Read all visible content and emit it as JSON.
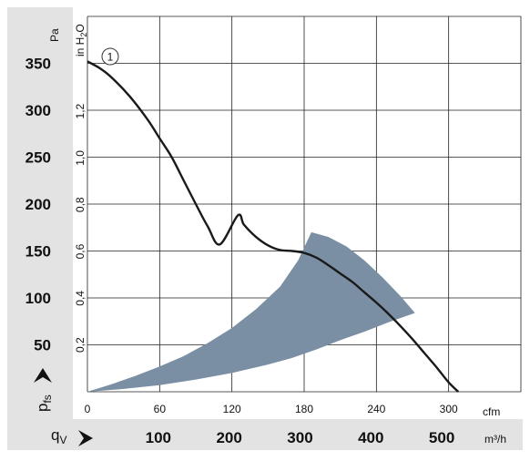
{
  "chart_data": {
    "type": "line",
    "title": "",
    "pressure_axis": {
      "unit_pa": "Pa",
      "ticks_pa": [
        50,
        100,
        150,
        200,
        250,
        300,
        350
      ],
      "unit_inh2o_main": "in H",
      "unit_inh2o_sub": "2",
      "unit_inh2o_tail": "O",
      "ticks_inh2o": [
        "0,2",
        "0,4",
        "0,6",
        "0,8",
        "1,0",
        "1,2"
      ],
      "ticks_inh2o_values": [
        0.2,
        0.4,
        0.6,
        0.8,
        1.0,
        1.2
      ],
      "label_main": "p",
      "label_sub": "fs",
      "ylim": [
        0,
        400
      ]
    },
    "flow_axis": {
      "unit_cfm": "cfm",
      "ticks_cfm": [
        0,
        60,
        120,
        180,
        240,
        300
      ],
      "unit_m3h": "m³/h",
      "ticks_m3h": [
        100,
        200,
        300,
        400,
        500
      ],
      "label_main": "q",
      "label_sub": "V",
      "xlim_cfm": [
        0,
        360
      ]
    },
    "curve_label": "1",
    "series": [
      {
        "points_cfm_pa": [
          [
            0,
            352
          ],
          [
            10,
            345
          ],
          [
            20,
            335
          ],
          [
            35,
            315
          ],
          [
            50,
            290
          ],
          [
            60,
            270
          ],
          [
            70,
            250
          ],
          [
            80,
            225
          ],
          [
            90,
            200
          ],
          [
            100,
            176
          ],
          [
            110,
            157
          ],
          [
            120,
            196
          ],
          [
            125,
            188
          ],
          [
            130,
            178
          ],
          [
            140,
            165
          ],
          [
            150,
            156
          ],
          [
            160,
            151
          ],
          [
            170,
            150
          ],
          [
            180,
            148
          ],
          [
            190,
            143
          ],
          [
            200,
            135
          ],
          [
            210,
            126
          ],
          [
            220,
            117
          ],
          [
            230,
            106
          ],
          [
            240,
            95
          ],
          [
            250,
            83
          ],
          [
            260,
            70
          ],
          [
            270,
            56
          ],
          [
            280,
            41
          ],
          [
            290,
            26
          ],
          [
            300,
            10
          ],
          [
            308,
            0
          ]
        ],
        "color": "#1a1a1a"
      }
    ],
    "operating_range": {
      "color": "#7a8fa3",
      "upper_boundary": [
        [
          0,
          0
        ],
        [
          20,
          8
        ],
        [
          40,
          17
        ],
        [
          60,
          27
        ],
        [
          80,
          38
        ],
        [
          100,
          52
        ],
        [
          120,
          68
        ],
        [
          140,
          88
        ],
        [
          160,
          112
        ],
        [
          175,
          140
        ],
        [
          186,
          170
        ]
      ],
      "top": [
        [
          186,
          170
        ],
        [
          200,
          165
        ],
        [
          215,
          155
        ],
        [
          230,
          140
        ],
        [
          245,
          122
        ],
        [
          260,
          102
        ],
        [
          272,
          84
        ]
      ],
      "lower_boundary": [
        [
          272,
          84
        ],
        [
          250,
          74
        ],
        [
          230,
          64
        ],
        [
          210,
          55
        ],
        [
          190,
          45
        ],
        [
          170,
          36
        ],
        [
          150,
          29
        ],
        [
          120,
          20
        ],
        [
          90,
          13
        ],
        [
          60,
          7
        ],
        [
          30,
          3
        ],
        [
          0,
          0
        ]
      ]
    },
    "grid": true,
    "legend": "none"
  }
}
